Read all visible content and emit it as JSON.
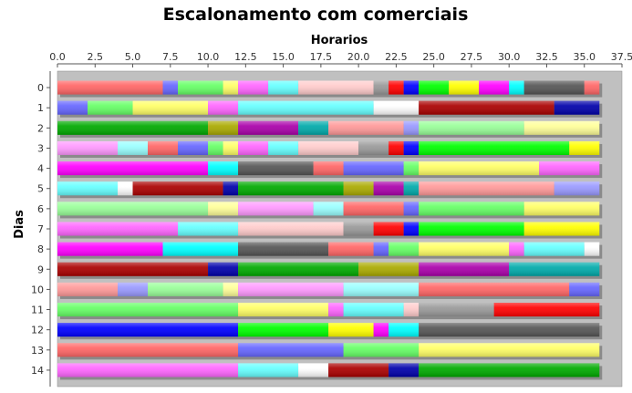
{
  "chart_data": {
    "type": "bar",
    "orientation": "horizontal",
    "stacked": true,
    "title": "Escalonamento com comerciais",
    "xlabel": "Horarios",
    "ylabel": "Dias",
    "xlim": [
      0,
      37.5
    ],
    "x_ticks": [
      "0.0",
      "2.5",
      "5.0",
      "7.5",
      "10.0",
      "12.5",
      "15.0",
      "17.5",
      "20.0",
      "22.5",
      "25.0",
      "27.5",
      "30.0",
      "32.5",
      "35.0",
      "37.5"
    ],
    "x_axis_position": "top",
    "grid": false,
    "categories": [
      "0",
      "1",
      "2",
      "3",
      "4",
      "5",
      "6",
      "7",
      "8",
      "9",
      "10",
      "11",
      "12",
      "13",
      "14"
    ],
    "rows": [
      {
        "day": "0",
        "segments": [
          {
            "start": 0,
            "end": 7,
            "color": "#ff6666"
          },
          {
            "start": 7,
            "end": 8,
            "color": "#6666ff"
          },
          {
            "start": 8,
            "end": 11,
            "color": "#66ff66"
          },
          {
            "start": 11,
            "end": 12,
            "color": "#ffff66"
          },
          {
            "start": 12,
            "end": 14,
            "color": "#ff66ff"
          },
          {
            "start": 14,
            "end": 16,
            "color": "#66ffff"
          },
          {
            "start": 16,
            "end": 21,
            "color": "#ffcccc"
          },
          {
            "start": 21,
            "end": 22,
            "color": "#999999"
          },
          {
            "start": 22,
            "end": 23,
            "color": "#ff0000"
          },
          {
            "start": 23,
            "end": 24,
            "color": "#0000ff"
          },
          {
            "start": 24,
            "end": 26,
            "color": "#00ff00"
          },
          {
            "start": 26,
            "end": 28,
            "color": "#ffff00"
          },
          {
            "start": 28,
            "end": 30,
            "color": "#ff00ff"
          },
          {
            "start": 30,
            "end": 31,
            "color": "#00ffff"
          },
          {
            "start": 31,
            "end": 35,
            "color": "#555555"
          },
          {
            "start": 35,
            "end": 36,
            "color": "#ff6666"
          }
        ]
      },
      {
        "day": "1",
        "segments": [
          {
            "start": 0,
            "end": 2,
            "color": "#6666ff"
          },
          {
            "start": 2,
            "end": 5,
            "color": "#66ff66"
          },
          {
            "start": 5,
            "end": 10,
            "color": "#ffff66"
          },
          {
            "start": 10,
            "end": 12,
            "color": "#ff66ff"
          },
          {
            "start": 12,
            "end": 21,
            "color": "#66ffff"
          },
          {
            "start": 21,
            "end": 24,
            "color": "#ffffff"
          },
          {
            "start": 24,
            "end": 33,
            "color": "#aa0000"
          },
          {
            "start": 33,
            "end": 36,
            "color": "#0000aa"
          }
        ]
      },
      {
        "day": "2",
        "segments": [
          {
            "start": 0,
            "end": 10,
            "color": "#00aa00"
          },
          {
            "start": 10,
            "end": 12,
            "color": "#aaaa00"
          },
          {
            "start": 12,
            "end": 16,
            "color": "#aa00aa"
          },
          {
            "start": 16,
            "end": 18,
            "color": "#00aaaa"
          },
          {
            "start": 18,
            "end": 23,
            "color": "#ff9999"
          },
          {
            "start": 23,
            "end": 24,
            "color": "#9999ff"
          },
          {
            "start": 24,
            "end": 31,
            "color": "#99ff99"
          },
          {
            "start": 31,
            "end": 36,
            "color": "#ffff99"
          }
        ]
      },
      {
        "day": "3",
        "segments": [
          {
            "start": 0,
            "end": 4,
            "color": "#ff99ff"
          },
          {
            "start": 4,
            "end": 6,
            "color": "#99ffff"
          },
          {
            "start": 6,
            "end": 8,
            "color": "#ff6666"
          },
          {
            "start": 8,
            "end": 10,
            "color": "#6666ff"
          },
          {
            "start": 10,
            "end": 11,
            "color": "#66ff66"
          },
          {
            "start": 11,
            "end": 12,
            "color": "#ffff66"
          },
          {
            "start": 12,
            "end": 14,
            "color": "#ff66ff"
          },
          {
            "start": 14,
            "end": 16,
            "color": "#66ffff"
          },
          {
            "start": 16,
            "end": 20,
            "color": "#ffcccc"
          },
          {
            "start": 20,
            "end": 22,
            "color": "#999999"
          },
          {
            "start": 22,
            "end": 23,
            "color": "#ff0000"
          },
          {
            "start": 23,
            "end": 24,
            "color": "#0000ff"
          },
          {
            "start": 24,
            "end": 34,
            "color": "#00ff00"
          },
          {
            "start": 34,
            "end": 36,
            "color": "#ffff00"
          }
        ]
      },
      {
        "day": "4",
        "segments": [
          {
            "start": 0,
            "end": 10,
            "color": "#ff00ff"
          },
          {
            "start": 10,
            "end": 12,
            "color": "#00ffff"
          },
          {
            "start": 12,
            "end": 17,
            "color": "#555555"
          },
          {
            "start": 17,
            "end": 19,
            "color": "#ff6666"
          },
          {
            "start": 19,
            "end": 23,
            "color": "#6666ff"
          },
          {
            "start": 23,
            "end": 24,
            "color": "#66ff66"
          },
          {
            "start": 24,
            "end": 32,
            "color": "#ffff66"
          },
          {
            "start": 32,
            "end": 36,
            "color": "#ff66ff"
          }
        ]
      },
      {
        "day": "5",
        "segments": [
          {
            "start": 0,
            "end": 4,
            "color": "#66ffff"
          },
          {
            "start": 4,
            "end": 5,
            "color": "#ffffff"
          },
          {
            "start": 5,
            "end": 11,
            "color": "#aa0000"
          },
          {
            "start": 11,
            "end": 12,
            "color": "#0000aa"
          },
          {
            "start": 12,
            "end": 19,
            "color": "#00aa00"
          },
          {
            "start": 19,
            "end": 21,
            "color": "#aaaa00"
          },
          {
            "start": 21,
            "end": 23,
            "color": "#aa00aa"
          },
          {
            "start": 23,
            "end": 24,
            "color": "#00aaaa"
          },
          {
            "start": 24,
            "end": 33,
            "color": "#ff9999"
          },
          {
            "start": 33,
            "end": 36,
            "color": "#9999ff"
          }
        ]
      },
      {
        "day": "6",
        "segments": [
          {
            "start": 0,
            "end": 10,
            "color": "#99ff99"
          },
          {
            "start": 10,
            "end": 12,
            "color": "#ffff99"
          },
          {
            "start": 12,
            "end": 17,
            "color": "#ff99ff"
          },
          {
            "start": 17,
            "end": 19,
            "color": "#99ffff"
          },
          {
            "start": 19,
            "end": 23,
            "color": "#ff6666"
          },
          {
            "start": 23,
            "end": 24,
            "color": "#6666ff"
          },
          {
            "start": 24,
            "end": 31,
            "color": "#66ff66"
          },
          {
            "start": 31,
            "end": 36,
            "color": "#ffff66"
          }
        ]
      },
      {
        "day": "7",
        "segments": [
          {
            "start": 0,
            "end": 8,
            "color": "#ff66ff"
          },
          {
            "start": 8,
            "end": 12,
            "color": "#66ffff"
          },
          {
            "start": 12,
            "end": 19,
            "color": "#ffcccc"
          },
          {
            "start": 19,
            "end": 21,
            "color": "#999999"
          },
          {
            "start": 21,
            "end": 23,
            "color": "#ff0000"
          },
          {
            "start": 23,
            "end": 24,
            "color": "#0000ff"
          },
          {
            "start": 24,
            "end": 31,
            "color": "#00ff00"
          },
          {
            "start": 31,
            "end": 36,
            "color": "#ffff00"
          }
        ]
      },
      {
        "day": "8",
        "segments": [
          {
            "start": 0,
            "end": 7,
            "color": "#ff00ff"
          },
          {
            "start": 7,
            "end": 12,
            "color": "#00ffff"
          },
          {
            "start": 12,
            "end": 18,
            "color": "#555555"
          },
          {
            "start": 18,
            "end": 21,
            "color": "#ff6666"
          },
          {
            "start": 21,
            "end": 22,
            "color": "#6666ff"
          },
          {
            "start": 22,
            "end": 24,
            "color": "#66ff66"
          },
          {
            "start": 24,
            "end": 30,
            "color": "#ffff66"
          },
          {
            "start": 30,
            "end": 31,
            "color": "#ff66ff"
          },
          {
            "start": 31,
            "end": 35,
            "color": "#66ffff"
          },
          {
            "start": 35,
            "end": 36,
            "color": "#ffffff"
          }
        ]
      },
      {
        "day": "9",
        "segments": [
          {
            "start": 0,
            "end": 10,
            "color": "#aa0000"
          },
          {
            "start": 10,
            "end": 12,
            "color": "#0000aa"
          },
          {
            "start": 12,
            "end": 20,
            "color": "#00aa00"
          },
          {
            "start": 20,
            "end": 24,
            "color": "#aaaa00"
          },
          {
            "start": 24,
            "end": 30,
            "color": "#aa00aa"
          },
          {
            "start": 30,
            "end": 36,
            "color": "#00aaaa"
          }
        ]
      },
      {
        "day": "10",
        "segments": [
          {
            "start": 0,
            "end": 4,
            "color": "#ff9999"
          },
          {
            "start": 4,
            "end": 6,
            "color": "#9999ff"
          },
          {
            "start": 6,
            "end": 11,
            "color": "#99ff99"
          },
          {
            "start": 11,
            "end": 12,
            "color": "#ffff99"
          },
          {
            "start": 12,
            "end": 19,
            "color": "#ff99ff"
          },
          {
            "start": 19,
            "end": 24,
            "color": "#99ffff"
          },
          {
            "start": 24,
            "end": 34,
            "color": "#ff6666"
          },
          {
            "start": 34,
            "end": 36,
            "color": "#6666ff"
          }
        ]
      },
      {
        "day": "11",
        "segments": [
          {
            "start": 0,
            "end": 12,
            "color": "#66ff66"
          },
          {
            "start": 12,
            "end": 18,
            "color": "#ffff66"
          },
          {
            "start": 18,
            "end": 19,
            "color": "#ff66ff"
          },
          {
            "start": 19,
            "end": 23,
            "color": "#66ffff"
          },
          {
            "start": 23,
            "end": 24,
            "color": "#ffcccc"
          },
          {
            "start": 24,
            "end": 29,
            "color": "#999999"
          },
          {
            "start": 29,
            "end": 36,
            "color": "#ff0000"
          }
        ]
      },
      {
        "day": "12",
        "segments": [
          {
            "start": 0,
            "end": 12,
            "color": "#0000ff"
          },
          {
            "start": 12,
            "end": 18,
            "color": "#00ff00"
          },
          {
            "start": 18,
            "end": 21,
            "color": "#ffff00"
          },
          {
            "start": 21,
            "end": 22,
            "color": "#ff00ff"
          },
          {
            "start": 22,
            "end": 24,
            "color": "#00ffff"
          },
          {
            "start": 24,
            "end": 36,
            "color": "#555555"
          }
        ]
      },
      {
        "day": "13",
        "segments": [
          {
            "start": 0,
            "end": 12,
            "color": "#ff6666"
          },
          {
            "start": 12,
            "end": 19,
            "color": "#6666ff"
          },
          {
            "start": 19,
            "end": 24,
            "color": "#66ff66"
          },
          {
            "start": 24,
            "end": 36,
            "color": "#ffff66"
          }
        ]
      },
      {
        "day": "14",
        "segments": [
          {
            "start": 0,
            "end": 12,
            "color": "#ff66ff"
          },
          {
            "start": 12,
            "end": 16,
            "color": "#66ffff"
          },
          {
            "start": 16,
            "end": 18,
            "color": "#ffffff"
          },
          {
            "start": 18,
            "end": 22,
            "color": "#aa0000"
          },
          {
            "start": 22,
            "end": 24,
            "color": "#0000aa"
          },
          {
            "start": 24,
            "end": 36,
            "color": "#00aa00"
          }
        ]
      }
    ]
  }
}
